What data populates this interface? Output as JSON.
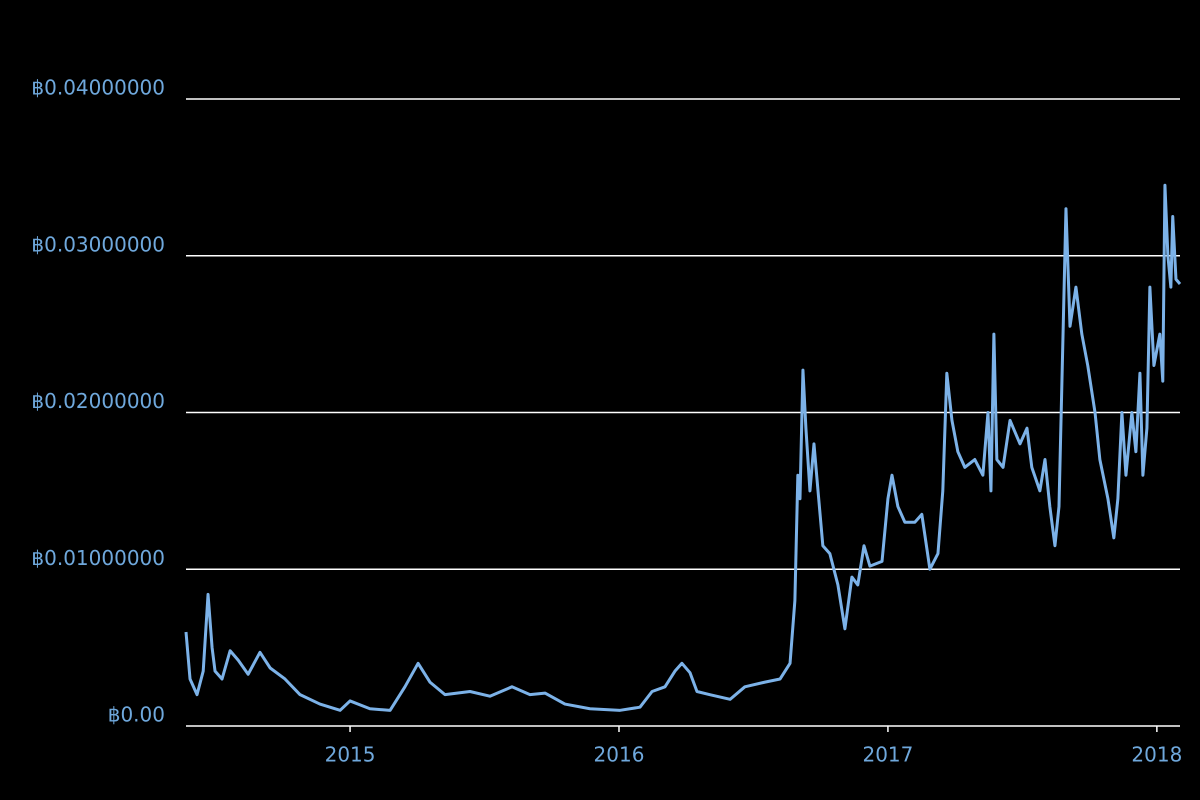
{
  "chart_data": {
    "type": "line",
    "color": "#7cb2e8",
    "label_color": "#6fa8dc",
    "grid": true,
    "xlim": [
      2014.39,
      2018.086
    ],
    "xticks": [
      2015,
      2016,
      2017,
      2018
    ],
    "ylim": [
      0,
      0.04
    ],
    "yticks": [
      {
        "value": 0,
        "label": "฿0.00"
      },
      {
        "value": 0.01,
        "label": "฿0.01000000"
      },
      {
        "value": 0.02,
        "label": "฿0.02000000"
      },
      {
        "value": 0.03,
        "label": "฿0.03000000"
      },
      {
        "value": 0.04,
        "label": "฿0.04000000"
      }
    ],
    "x": [
      2014.39,
      2014.405,
      2014.431,
      2014.454,
      2014.472,
      2014.487,
      2014.498,
      2014.524,
      2014.554,
      2014.584,
      2014.621,
      2014.665,
      2014.703,
      2014.758,
      2014.814,
      2014.888,
      2014.963,
      2015.0,
      2015.074,
      2015.149,
      2015.204,
      2015.253,
      2015.297,
      2015.353,
      2015.446,
      2015.52,
      2015.602,
      2015.669,
      2015.725,
      2015.799,
      2015.892,
      2016.004,
      2016.078,
      2016.123,
      2016.171,
      2016.208,
      2016.234,
      2016.264,
      2016.29,
      2016.338,
      2016.413,
      2016.468,
      2016.543,
      2016.599,
      2016.636,
      2016.654,
      2016.665,
      2016.673,
      2016.684,
      2016.695,
      2016.71,
      2016.725,
      2016.74,
      2016.758,
      2016.784,
      2016.814,
      2016.84,
      2016.866,
      2016.888,
      2016.911,
      2016.933,
      2016.978,
      2017.0,
      2017.015,
      2017.037,
      2017.063,
      2017.1,
      2017.126,
      2017.156,
      2017.186,
      2017.204,
      2017.219,
      2017.238,
      2017.26,
      2017.286,
      2017.323,
      2017.353,
      2017.372,
      2017.383,
      2017.394,
      2017.405,
      2017.428,
      2017.454,
      2017.491,
      2017.517,
      2017.535,
      2017.565,
      2017.584,
      2017.602,
      2017.621,
      2017.636,
      2017.647,
      2017.662,
      2017.677,
      2017.699,
      2017.721,
      2017.743,
      2017.77,
      2017.788,
      2017.818,
      2017.84,
      2017.855,
      2017.87,
      2017.885,
      2017.907,
      2017.922,
      2017.937,
      2017.948,
      2017.963,
      2017.974,
      2017.989,
      2018.011,
      2018.022,
      2018.03,
      2018.041,
      2018.052,
      2018.059,
      2018.071,
      2018.086
    ],
    "values": [
      0.006,
      0.003,
      0.002,
      0.0035,
      0.0084,
      0.005,
      0.0035,
      0.003,
      0.0048,
      0.0042,
      0.0033,
      0.0047,
      0.0037,
      0.003,
      0.002,
      0.0014,
      0.001,
      0.0016,
      0.0011,
      0.001,
      0.0025,
      0.004,
      0.0028,
      0.002,
      0.0022,
      0.0019,
      0.0025,
      0.002,
      0.0021,
      0.0014,
      0.0011,
      0.001,
      0.0012,
      0.0022,
      0.0025,
      0.0035,
      0.004,
      0.0034,
      0.0022,
      0.002,
      0.0017,
      0.0025,
      0.0028,
      0.003,
      0.004,
      0.008,
      0.016,
      0.0145,
      0.0227,
      0.019,
      0.015,
      0.018,
      0.015,
      0.0115,
      0.011,
      0.009,
      0.0062,
      0.0095,
      0.009,
      0.0115,
      0.0102,
      0.0105,
      0.0145,
      0.016,
      0.014,
      0.013,
      0.013,
      0.0135,
      0.01,
      0.011,
      0.015,
      0.0225,
      0.0195,
      0.0175,
      0.0165,
      0.017,
      0.016,
      0.02,
      0.015,
      0.025,
      0.017,
      0.0165,
      0.0195,
      0.018,
      0.019,
      0.0165,
      0.015,
      0.017,
      0.014,
      0.0115,
      0.014,
      0.022,
      0.033,
      0.0255,
      0.028,
      0.025,
      0.023,
      0.02,
      0.017,
      0.0145,
      0.012,
      0.0145,
      0.02,
      0.016,
      0.02,
      0.0175,
      0.0225,
      0.016,
      0.019,
      0.028,
      0.023,
      0.025,
      0.022,
      0.0345,
      0.03,
      0.028,
      0.0325,
      0.0285,
      0.0282
    ]
  }
}
